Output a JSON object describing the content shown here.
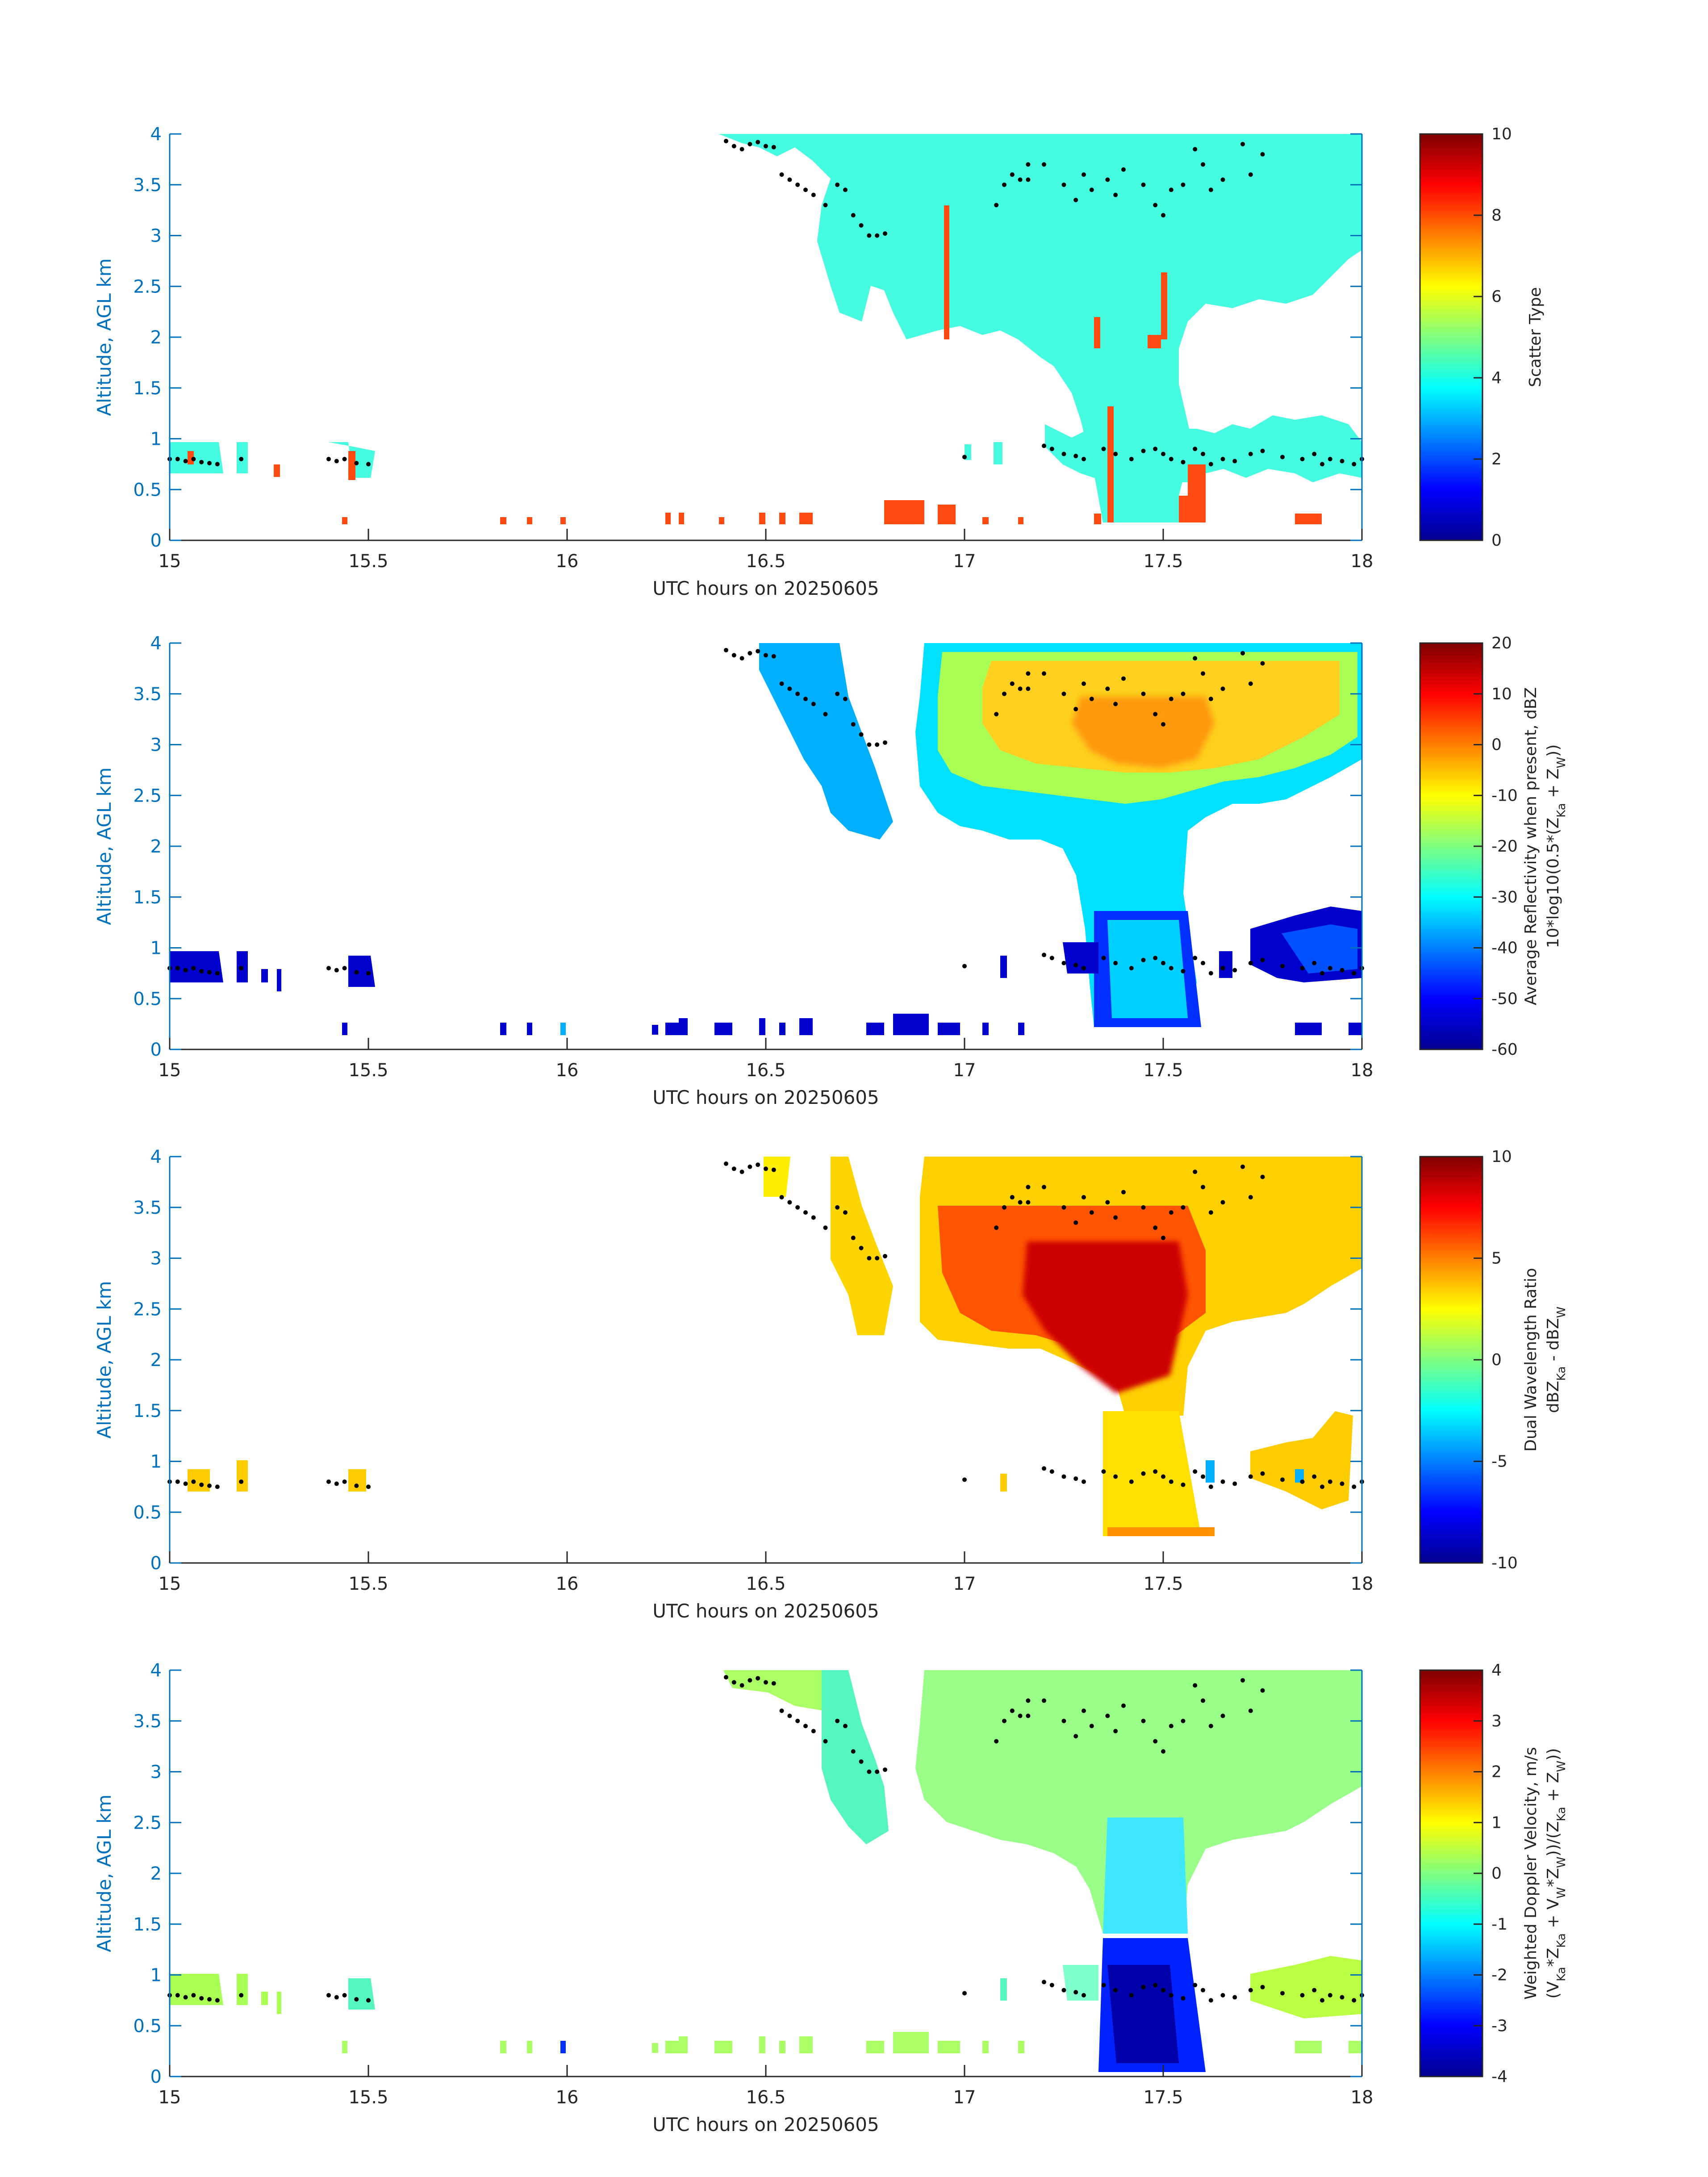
{
  "chart_data": [
    {
      "type": "heatmap",
      "xlabel": "UTC hours on 20250605",
      "ylabel": "Altitude, AGL km",
      "x_ticks": [
        "15",
        "15.5",
        "16",
        "16.5",
        "17",
        "17.5",
        "18"
      ],
      "y_ticks": [
        "0",
        "0.5",
        "1",
        "1.5",
        "2",
        "2.5",
        "3",
        "3.5",
        "4"
      ],
      "xlim": [
        15,
        18
      ],
      "ylim": [
        0,
        4
      ],
      "colorbar": {
        "label_lines": [
          "Scatter Type"
        ],
        "ticks": [
          "0",
          "2",
          "4",
          "6",
          "8",
          "10"
        ],
        "range": [
          0,
          10
        ],
        "colormap": "jet"
      },
      "description_values": {
        "dominant_value": 4,
        "secondary_value": 9
      }
    },
    {
      "type": "heatmap",
      "xlabel": "UTC hours on 20250605",
      "ylabel": "Altitude, AGL km",
      "x_ticks": [
        "15",
        "15.5",
        "16",
        "16.5",
        "17",
        "17.5",
        "18"
      ],
      "y_ticks": [
        "0",
        "0.5",
        "1",
        "1.5",
        "2",
        "2.5",
        "3",
        "3.5",
        "4"
      ],
      "xlim": [
        15,
        18
      ],
      "ylim": [
        0,
        4
      ],
      "colorbar": {
        "label_lines": [
          "Average Reflectivity when present, dBZ",
          "10*log10(0.5*(Z",
          "Ka",
          " + Z",
          "W",
          "))"
        ],
        "ticks": [
          "20",
          "10",
          "0",
          "-10",
          "-20",
          "-30",
          "-40",
          "-50",
          "-60"
        ],
        "range": [
          -60,
          20
        ],
        "colormap": "jet"
      }
    },
    {
      "type": "heatmap",
      "xlabel": "UTC hours on 20250605",
      "ylabel": "Altitude, AGL km",
      "x_ticks": [
        "15",
        "15.5",
        "16",
        "16.5",
        "17",
        "17.5",
        "18"
      ],
      "y_ticks": [
        "0",
        "0.5",
        "1",
        "1.5",
        "2",
        "2.5",
        "3",
        "3.5",
        "4"
      ],
      "xlim": [
        15,
        18
      ],
      "ylim": [
        0,
        4
      ],
      "colorbar": {
        "label_lines": [
          "Dual Wavelength Ratio",
          "dBZ",
          "Ka",
          " - dBZ",
          "W"
        ],
        "ticks": [
          "10",
          "5",
          "0",
          "-5",
          "-10"
        ],
        "range": [
          -10,
          10
        ],
        "colormap": "jet"
      }
    },
    {
      "type": "heatmap",
      "xlabel": "UTC hours on 20250605",
      "ylabel": "Altitude, AGL km",
      "x_ticks": [
        "15",
        "15.5",
        "16",
        "16.5",
        "17",
        "17.5",
        "18"
      ],
      "y_ticks": [
        "0",
        "0.5",
        "1",
        "1.5",
        "2",
        "2.5",
        "3",
        "3.5",
        "4"
      ],
      "xlim": [
        15,
        18
      ],
      "ylim": [
        0,
        4
      ],
      "colorbar": {
        "label_lines": [
          "Weighted Doppler Velocity, m/s",
          "(V",
          "Ka",
          "*Z",
          "Ka",
          " + V",
          "W",
          "*Z",
          "W",
          "))/(Z",
          "Ka",
          " + Z",
          "W",
          "))"
        ],
        "ticks": [
          "4",
          "3",
          "2",
          "1",
          "0",
          "-1",
          "-2",
          "-3",
          "-4"
        ],
        "range": [
          -4,
          4
        ],
        "colormap": "jet"
      }
    }
  ],
  "cloud_base_points_km": {
    "x": [
      15.0,
      15.02,
      15.04,
      15.06,
      15.08,
      15.1,
      15.12,
      15.18,
      15.4,
      15.42,
      15.44,
      15.47,
      15.5,
      16.4,
      16.42,
      16.44,
      16.46,
      16.48,
      16.5,
      16.52,
      16.54,
      16.56,
      16.58,
      16.6,
      16.62,
      16.65,
      16.68,
      16.7,
      16.72,
      16.74,
      16.76,
      16.78,
      16.8,
      17.0,
      17.08,
      17.1,
      17.12,
      17.14,
      17.16,
      17.2,
      17.22,
      17.25,
      17.28,
      17.3,
      17.35,
      17.38,
      17.42,
      17.45,
      17.48,
      17.5,
      17.52,
      17.55,
      17.58,
      17.6,
      17.62,
      17.65,
      17.68,
      17.72,
      17.75,
      17.8,
      17.85,
      17.88,
      17.9,
      17.92,
      17.95,
      17.98,
      18.0
    ],
    "y": [
      0.8,
      0.8,
      0.78,
      0.8,
      0.77,
      0.76,
      0.75,
      0.8,
      0.8,
      0.78,
      0.8,
      0.76,
      0.75,
      3.93,
      3.88,
      3.85,
      3.9,
      3.92,
      3.88,
      3.87,
      3.6,
      3.55,
      3.5,
      3.45,
      3.4,
      3.3,
      3.5,
      3.45,
      3.2,
      3.1,
      3.0,
      3.0,
      3.02,
      0.82,
      3.3,
      3.5,
      3.6,
      3.55,
      3.7,
      0.93,
      0.9,
      0.85,
      0.83,
      0.8,
      0.9,
      0.85,
      0.8,
      0.88,
      0.9,
      0.85,
      0.8,
      0.77,
      0.9,
      0.85,
      0.75,
      0.8,
      0.78,
      0.85,
      0.88,
      0.82,
      0.8,
      0.85,
      0.75,
      0.8,
      0.78,
      0.75,
      0.8
    ],
    "upper_x": [
      17.12,
      17.16,
      17.2,
      17.25,
      17.28,
      17.3,
      17.32,
      17.36,
      17.38,
      17.4,
      17.45,
      17.48,
      17.5,
      17.52,
      17.55,
      17.58,
      17.6,
      17.62,
      17.65,
      17.7,
      17.72,
      17.75
    ],
    "upper_y": [
      3.6,
      3.55,
      3.7,
      3.5,
      3.35,
      3.6,
      3.45,
      3.55,
      3.4,
      3.65,
      3.5,
      3.3,
      3.2,
      3.45,
      3.5,
      3.85,
      3.7,
      3.45,
      3.55,
      3.9,
      3.6,
      3.8
    ]
  }
}
